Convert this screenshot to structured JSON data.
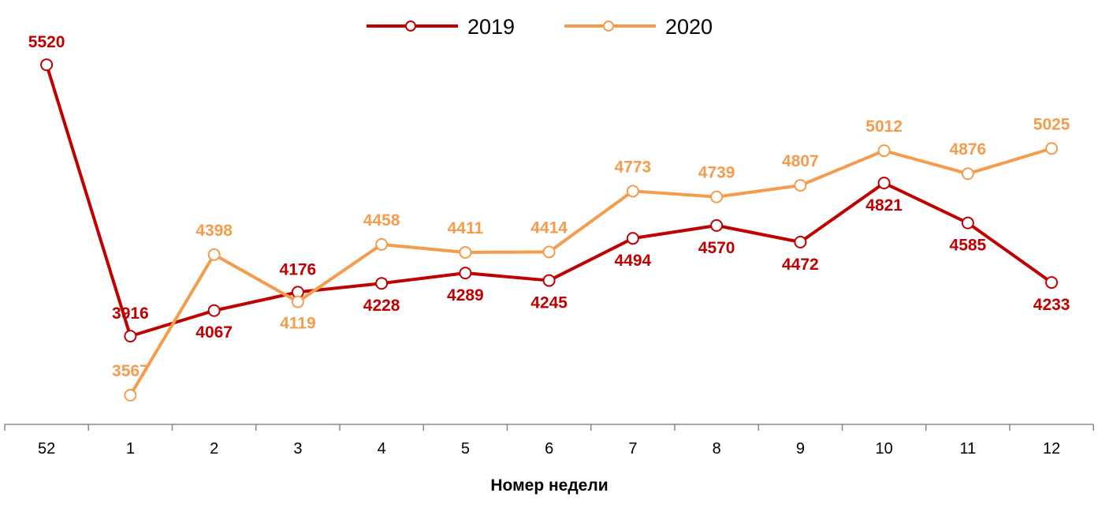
{
  "chart_data": {
    "type": "line",
    "title": "",
    "xlabel": "Номер недели",
    "ylabel": "",
    "categories": [
      "52",
      "1",
      "2",
      "3",
      "4",
      "5",
      "6",
      "7",
      "8",
      "9",
      "10",
      "11",
      "12"
    ],
    "series": [
      {
        "name": "2019",
        "color": "#C00000",
        "values": [
          5520,
          3916,
          4067,
          4176,
          4228,
          4289,
          4245,
          4494,
          4570,
          4472,
          4821,
          4585,
          4233
        ]
      },
      {
        "name": "2020",
        "color": "#F59B4C",
        "values": [
          null,
          3567,
          4398,
          4119,
          4458,
          4411,
          4414,
          4773,
          4739,
          4807,
          5012,
          4876,
          5025
        ]
      }
    ],
    "data_labels": true,
    "grid": false,
    "legend_position": "top-center"
  }
}
